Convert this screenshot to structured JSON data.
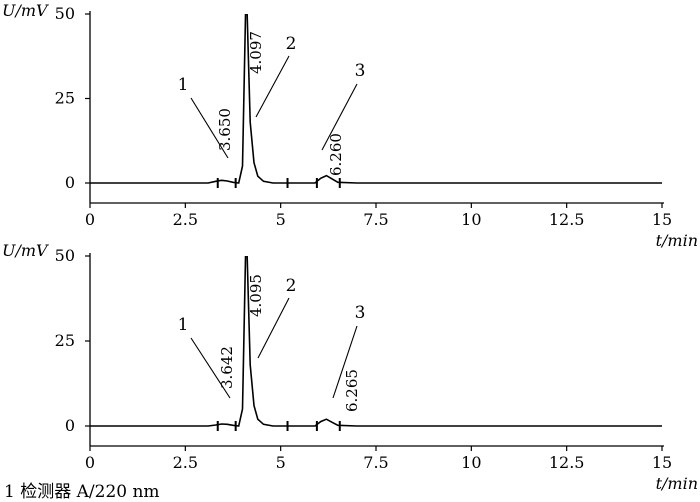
{
  "chart_data": [
    {
      "type": "line",
      "ylabel": "U/mV",
      "xlabel": "t/min",
      "xlim": [
        0,
        15
      ],
      "ylim": [
        0,
        50
      ],
      "x_ticks": [
        "0",
        "2.5",
        "5",
        "7.5",
        "10",
        "12.5",
        "15"
      ],
      "y_ticks": [
        "0",
        "25",
        "50"
      ],
      "peaks": [
        {
          "number": "1",
          "retention_time": "3.650",
          "time": 3.65
        },
        {
          "number": "2",
          "retention_time": "4.097",
          "time": 4.097
        },
        {
          "number": "3",
          "retention_time": "6.260",
          "time": 6.26
        }
      ],
      "series": [
        {
          "x": [
            0,
            3.1,
            3.3,
            3.45,
            3.6,
            3.75,
            3.9,
            4.0,
            4.097,
            4.2,
            4.3,
            4.4,
            4.55,
            4.8,
            5.2,
            5.9,
            6.05,
            6.2,
            6.35,
            6.5,
            7.0,
            10,
            15
          ],
          "y": [
            0,
            0,
            0.5,
            0.8,
            0.6,
            0.2,
            0,
            5,
            60,
            18,
            6,
            2,
            0.5,
            0,
            0,
            0,
            1.4,
            2.2,
            1.2,
            0.2,
            0,
            0,
            0
          ]
        }
      ]
    },
    {
      "type": "line",
      "ylabel": "U/mV",
      "xlabel": "t/min",
      "xlim": [
        0,
        15
      ],
      "ylim": [
        0,
        50
      ],
      "x_ticks": [
        "0",
        "2.5",
        "5",
        "7.5",
        "10",
        "12.5",
        "15"
      ],
      "y_ticks": [
        "0",
        "25",
        "50"
      ],
      "peaks": [
        {
          "number": "1",
          "retention_time": "3.642",
          "time": 3.642
        },
        {
          "number": "2",
          "retention_time": "4.095",
          "time": 4.095
        },
        {
          "number": "3",
          "retention_time": "6.265",
          "time": 6.265
        }
      ],
      "series": [
        {
          "x": [
            0,
            3.1,
            3.3,
            3.45,
            3.6,
            3.75,
            3.9,
            4.0,
            4.095,
            4.2,
            4.3,
            4.4,
            4.55,
            4.8,
            5.2,
            5.9,
            6.05,
            6.2,
            6.35,
            6.5,
            7.0,
            10,
            15
          ],
          "y": [
            0,
            0,
            0.3,
            0.6,
            0.5,
            0.2,
            0,
            5,
            60,
            18,
            6,
            2,
            0.5,
            0,
            0,
            0,
            1.3,
            2.0,
            1.1,
            0.2,
            0,
            0,
            0
          ]
        }
      ]
    }
  ],
  "footer": "1 检测器 A/220 nm"
}
